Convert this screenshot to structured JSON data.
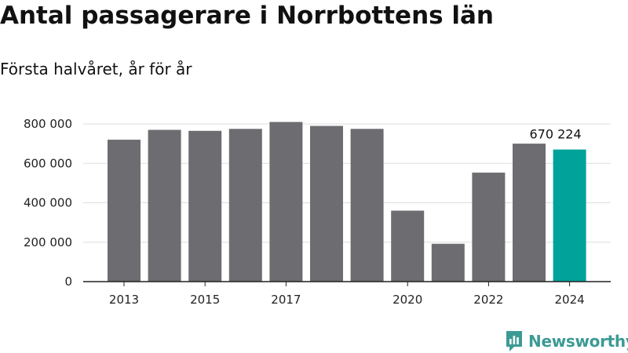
{
  "header": {
    "title": "Antal passagerare i Norrbottens län",
    "subtitle": "Första halvåret, år för år"
  },
  "brand": {
    "name": "Newsworthy",
    "color": "#3c9a94",
    "icon": "newsworthy-logo-icon"
  },
  "colors": {
    "bar": "#6d6c71",
    "highlight": "#00a29a",
    "grid": "#dddddd",
    "axis": "#222222"
  },
  "chart_data": {
    "type": "bar",
    "categories": [
      "2013",
      "2014",
      "2015",
      "2016",
      "2017",
      "2018",
      "2019",
      "2020",
      "2021",
      "2022",
      "2023",
      "2024"
    ],
    "values": [
      720000,
      770000,
      765000,
      775000,
      810000,
      790000,
      775000,
      360000,
      192000,
      553000,
      700000,
      670224
    ],
    "highlight_index": 11,
    "x_tick_labels": [
      "2013",
      "2015",
      "2017",
      "2020",
      "2022",
      "2024"
    ],
    "y_ticks": [
      0,
      200000,
      400000,
      600000,
      800000
    ],
    "y_tick_labels": [
      "0",
      "200 000",
      "400 000",
      "600 000",
      "800 000"
    ],
    "ylim": [
      0,
      800000
    ],
    "data_labels": [
      {
        "category": "2024",
        "text": "670 224"
      }
    ],
    "grid": true,
    "legend": "none",
    "title": "Antal passagerare i Norrbottens län",
    "subtitle": "Första halvåret, år för år"
  }
}
